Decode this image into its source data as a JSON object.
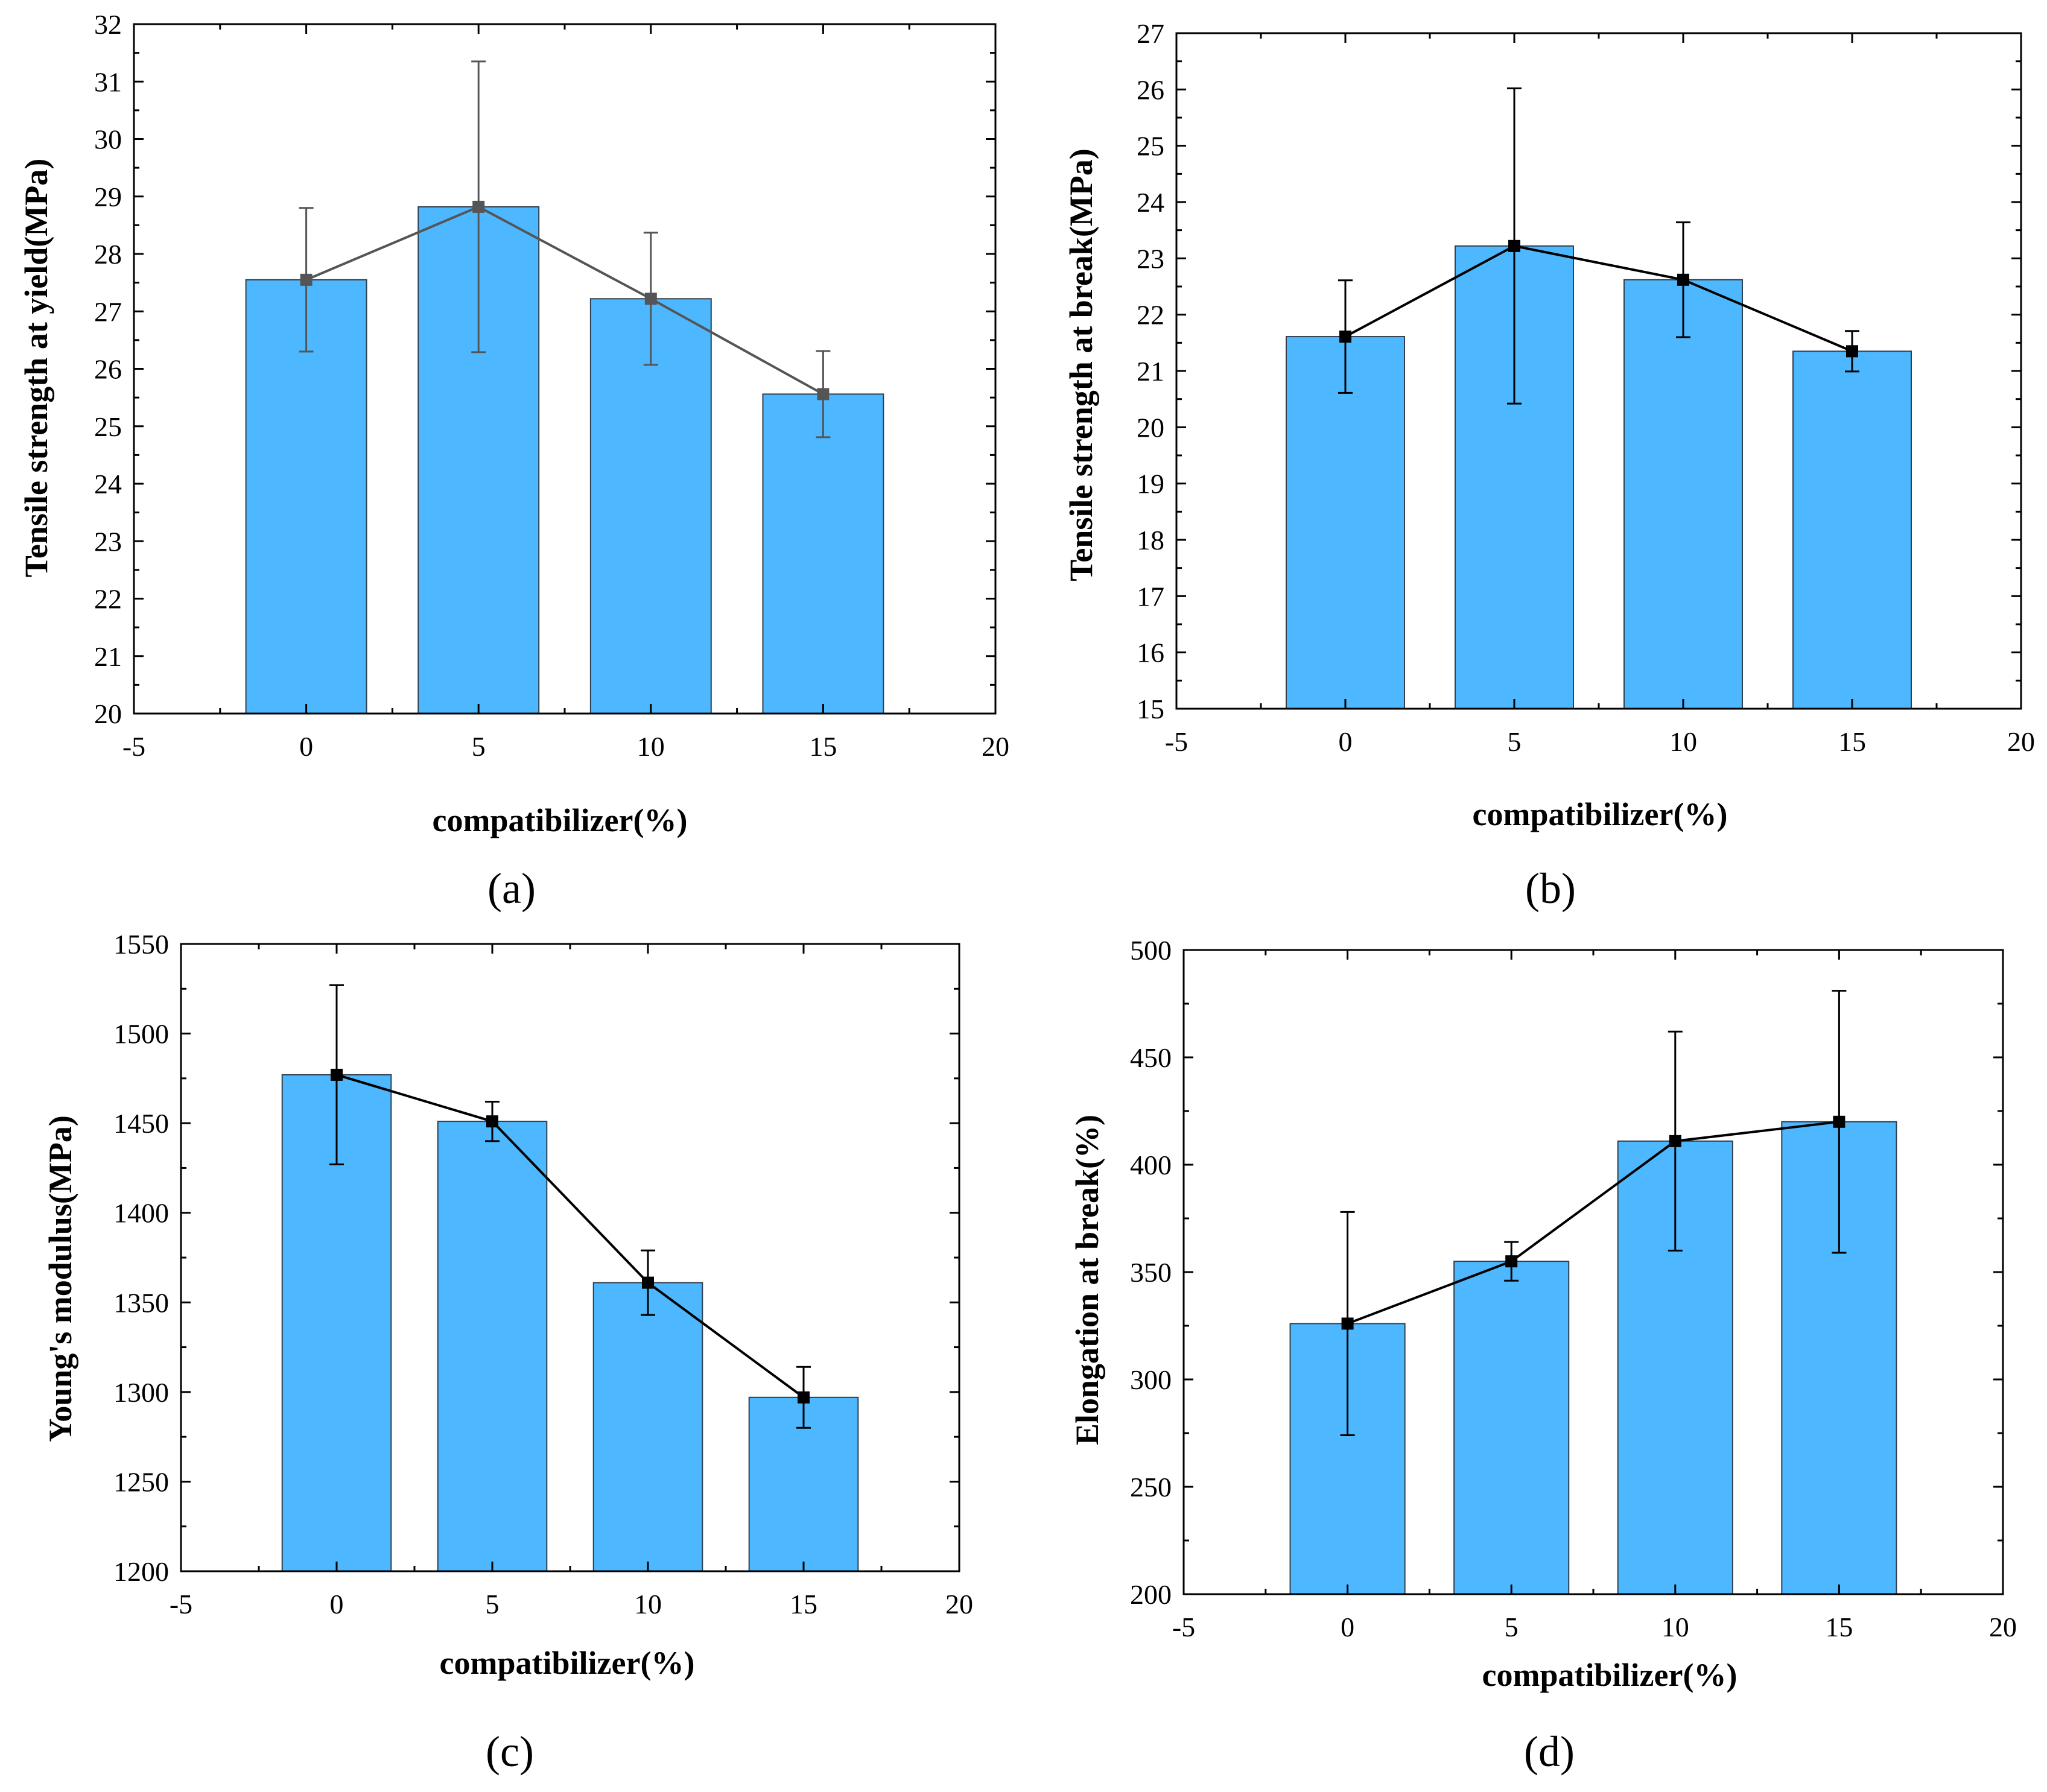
{
  "chart_data": [
    {
      "type": "bar",
      "panel_label": "(a)",
      "categories": [
        0,
        5,
        10,
        15
      ],
      "values": [
        27.55,
        28.82,
        27.22,
        25.56
      ],
      "errors": [
        1.25,
        2.53,
        1.15,
        0.75
      ],
      "line_color": "#555555",
      "xlabel": "compatibilizer(%)",
      "ylabel": "Tensile strength at yield(MPa)",
      "xlim": [
        -5,
        20
      ],
      "ylim": [
        20,
        32
      ],
      "xticks": [
        -5,
        0,
        5,
        10,
        15,
        20
      ],
      "yticks": [
        20,
        21,
        22,
        23,
        24,
        25,
        26,
        27,
        28,
        29,
        30,
        31,
        32
      ],
      "bar_color": "#4db8ff",
      "grid": false
    },
    {
      "type": "bar",
      "panel_label": "(b)",
      "categories": [
        0,
        5,
        10,
        15
      ],
      "values": [
        21.61,
        23.22,
        22.62,
        21.35
      ],
      "errors": [
        1.0,
        2.8,
        1.02,
        0.36
      ],
      "line_color": "#000000",
      "xlabel": "compatibilizer(%)",
      "ylabel": "Tensile strength at break(MPa)",
      "xlim": [
        -5,
        20
      ],
      "ylim": [
        15,
        27
      ],
      "xticks": [
        -5,
        0,
        5,
        10,
        15,
        20
      ],
      "yticks": [
        15,
        16,
        17,
        18,
        19,
        20,
        21,
        22,
        23,
        24,
        25,
        26,
        27
      ],
      "bar_color": "#4db8ff",
      "grid": false
    },
    {
      "type": "bar",
      "panel_label": "(c)",
      "categories": [
        0,
        5,
        10,
        15
      ],
      "values": [
        1477,
        1451,
        1361,
        1297
      ],
      "errors": [
        50,
        11,
        18,
        17
      ],
      "line_color": "#000000",
      "xlabel": "compatibilizer(%)",
      "ylabel": "Young's modulus(MPa)",
      "xlim": [
        -5,
        20
      ],
      "ylim": [
        1200,
        1550
      ],
      "xticks": [
        -5,
        0,
        5,
        10,
        15,
        20
      ],
      "yticks": [
        1200,
        1250,
        1300,
        1350,
        1400,
        1450,
        1500,
        1550
      ],
      "bar_color": "#4db8ff",
      "grid": false
    },
    {
      "type": "bar",
      "panel_label": "(d)",
      "categories": [
        0,
        5,
        10,
        15
      ],
      "values": [
        326,
        355,
        411,
        420
      ],
      "errors": [
        52,
        9,
        51,
        61
      ],
      "line_color": "#000000",
      "xlabel": "compatibilizer(%)",
      "ylabel": "Elongation at break(%)",
      "xlim": [
        -5,
        20
      ],
      "ylim": [
        200,
        500
      ],
      "xticks": [
        -5,
        0,
        5,
        10,
        15,
        20
      ],
      "yticks": [
        200,
        250,
        300,
        350,
        400,
        450,
        500
      ],
      "bar_color": "#4db8ff",
      "grid": false
    }
  ]
}
